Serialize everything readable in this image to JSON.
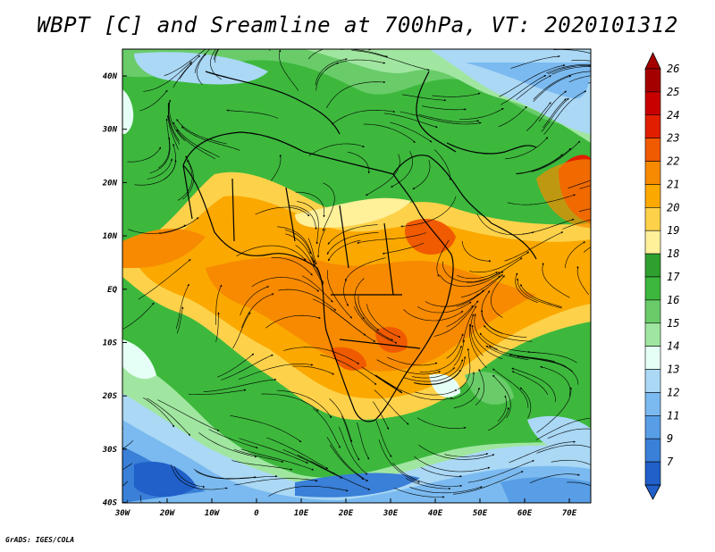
{
  "title": "WBPT [C] and Sreamline at 700hPa, VT: 2020101312",
  "credit": "GrADS: IGES/COLA",
  "lat_labels": [
    "40N",
    "30N",
    "20N",
    "10N",
    "EQ",
    "10S",
    "20S",
    "30S",
    "40S"
  ],
  "lon_labels": [
    "30W",
    "20W",
    "10W",
    "0",
    "10E",
    "20E",
    "30E",
    "40E",
    "50E",
    "60E",
    "70E"
  ],
  "colorbar": {
    "labels": [
      "26",
      "25",
      "24",
      "23",
      "22",
      "21",
      "20",
      "19",
      "18",
      "17",
      "16",
      "15",
      "14",
      "13",
      "12",
      "11",
      "9",
      "7"
    ],
    "colors": [
      "#a50000",
      "#c80000",
      "#e11f00",
      "#f05a00",
      "#f78a00",
      "#fba800",
      "#fdd24a",
      "#fff09a",
      "#2fa02f",
      "#3db83d",
      "#69cc69",
      "#a0e6a0",
      "#e6fff6",
      "#aad8f5",
      "#7bbaf0",
      "#579ee6",
      "#3a7fd8",
      "#2060c8"
    ]
  }
}
